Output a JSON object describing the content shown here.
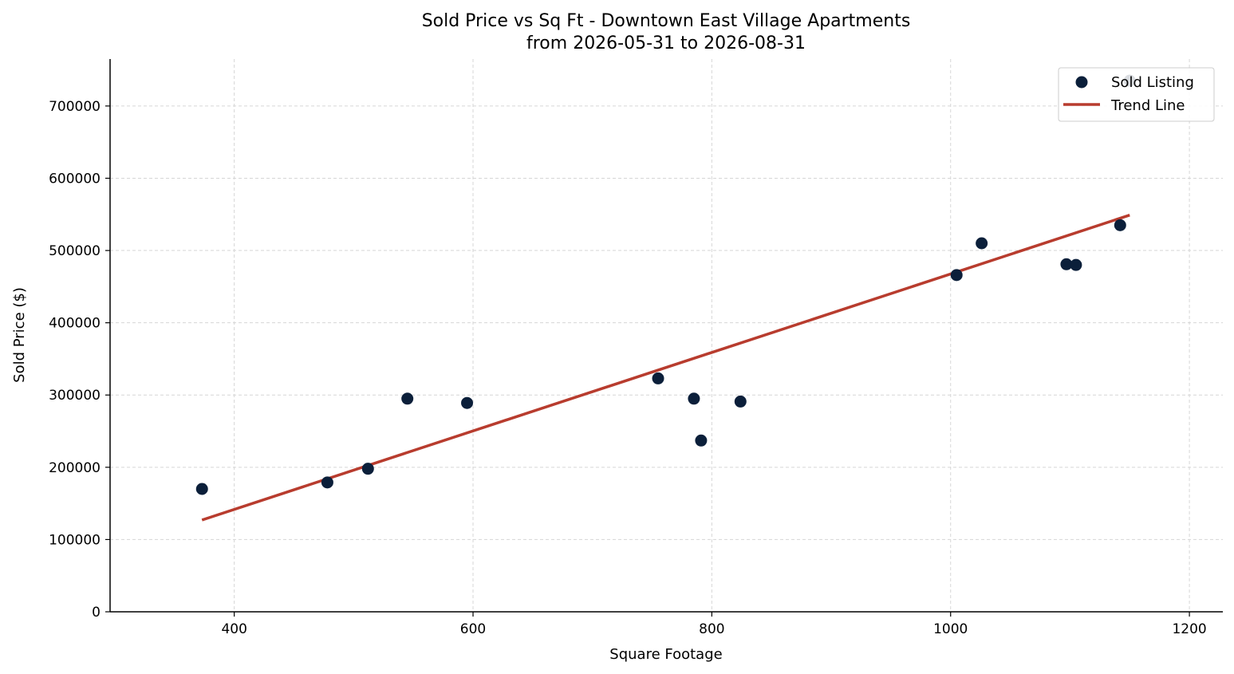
{
  "chart_data": {
    "type": "scatter",
    "title": "Sold Price vs Sq Ft - Downtown East Village Apartments",
    "subtitle": "from 2026-05-31 to 2026-08-31",
    "xlabel": "Square Footage",
    "ylabel": "Sold Price ($)",
    "xlim": [
      296,
      1228
    ],
    "ylim": [
      0,
      765000
    ],
    "x_ticks": [
      400,
      600,
      800,
      1000,
      1200
    ],
    "y_ticks": [
      0,
      100000,
      200000,
      300000,
      400000,
      500000,
      600000,
      700000
    ],
    "grid": true,
    "legend_position": "top-right",
    "colors": {
      "points": "#0b1f3a",
      "trend": "#b83c2e",
      "grid": "#d6d6d6"
    },
    "series": [
      {
        "name": "Sold Listing",
        "kind": "scatter",
        "points": [
          {
            "x": 373,
            "y": 170000
          },
          {
            "x": 478,
            "y": 179000
          },
          {
            "x": 512,
            "y": 198000
          },
          {
            "x": 545,
            "y": 295000
          },
          {
            "x": 595,
            "y": 289000
          },
          {
            "x": 755,
            "y": 323000
          },
          {
            "x": 785,
            "y": 295000
          },
          {
            "x": 791,
            "y": 237000
          },
          {
            "x": 824,
            "y": 291000
          },
          {
            "x": 1005,
            "y": 466000
          },
          {
            "x": 1026,
            "y": 510000
          },
          {
            "x": 1097,
            "y": 481000
          },
          {
            "x": 1105,
            "y": 480000
          },
          {
            "x": 1142,
            "y": 535000
          },
          {
            "x": 1150,
            "y": 735000
          }
        ]
      },
      {
        "name": "Trend Line",
        "kind": "line",
        "points": [
          {
            "x": 373,
            "y": 127000
          },
          {
            "x": 1150,
            "y": 549000
          }
        ]
      }
    ]
  }
}
